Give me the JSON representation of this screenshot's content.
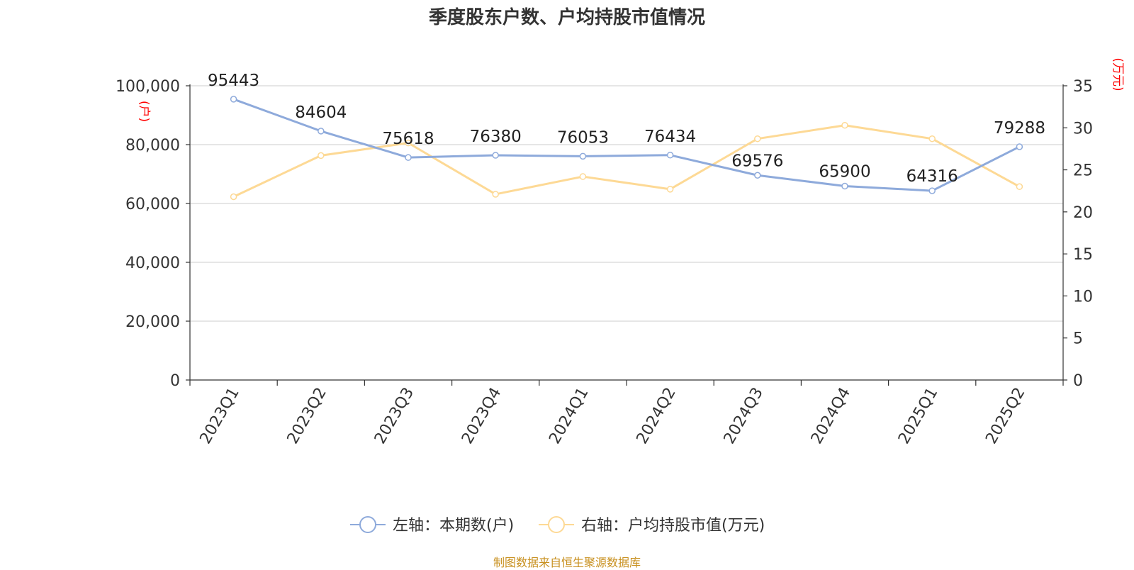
{
  "title": "季度股东户数、户均持股市值情况",
  "source": "制图数据来自恒生聚源数据库",
  "colors": {
    "series_left": "#8eaadb",
    "series_right": "#fdd995",
    "axis_unit": "#ff0000",
    "grid": "#cccccc",
    "axis": "#333333",
    "text": "#333333",
    "source": "#c8901f"
  },
  "chart_data": {
    "type": "line",
    "categories": [
      "2023Q1",
      "2023Q2",
      "2023Q3",
      "2023Q4",
      "2024Q1",
      "2024Q2",
      "2024Q3",
      "2024Q4",
      "2025Q1",
      "2025Q2"
    ],
    "series": [
      {
        "name": "左轴：本期数(户)",
        "axis": "left",
        "values": [
          95443,
          84604,
          75618,
          76380,
          76053,
          76434,
          69576,
          65900,
          64316,
          79288
        ],
        "labels": [
          "95443",
          "84604",
          "75618",
          "76380",
          "76053",
          "76434",
          "69576",
          "65900",
          "64316",
          "79288"
        ]
      },
      {
        "name": "右轴：户均持股市值(万元)",
        "axis": "right",
        "values": [
          21.8,
          26.7,
          28.2,
          22.1,
          24.2,
          22.7,
          28.7,
          30.3,
          28.7,
          23.0
        ]
      }
    ],
    "y_left": {
      "unit": "(户)",
      "ylim": [
        0,
        100000
      ],
      "ticks": [
        0,
        20000,
        40000,
        60000,
        80000,
        100000
      ],
      "tick_labels": [
        "0",
        "20,000",
        "40,000",
        "60,000",
        "80,000",
        "100,000"
      ]
    },
    "y_right": {
      "unit": "(万元)",
      "ylim": [
        0,
        35
      ],
      "ticks": [
        0,
        5,
        10,
        15,
        20,
        25,
        30,
        35
      ],
      "tick_labels": [
        "0",
        "5",
        "10",
        "15",
        "20",
        "25",
        "30",
        "35"
      ]
    },
    "grid": true,
    "legend_position": "bottom-center"
  }
}
